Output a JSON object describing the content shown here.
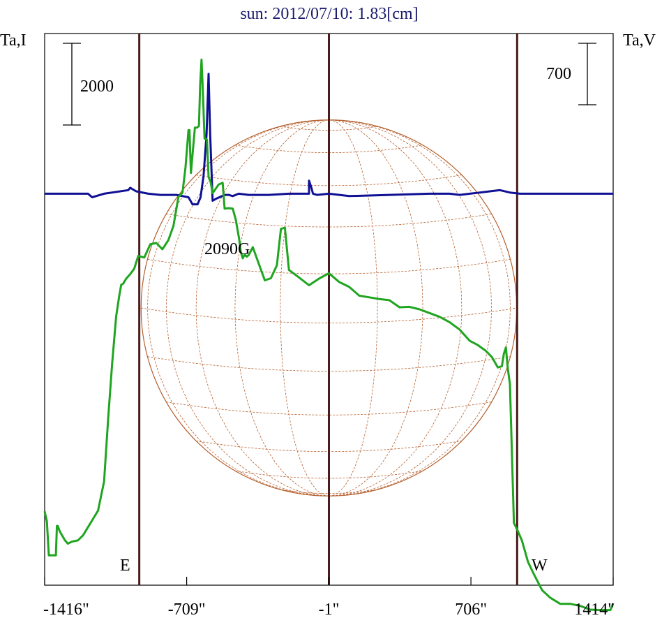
{
  "chart_data": {
    "type": "line",
    "title": "sun: 2012/07/10: 1.83[cm]",
    "y_left_label": "Ta,I",
    "y_right_label": "Ta,V",
    "scale_bar_left": "2000",
    "scale_bar_right": "700",
    "annotation": "2090G",
    "east_label": "E",
    "west_label": "W",
    "xlim": [
      -1416,
      1414
    ],
    "x_ticks": [
      {
        "value": -1416,
        "label": "-1416\""
      },
      {
        "value": -709,
        "label": "-709\""
      },
      {
        "value": -1,
        "label": "-1\""
      },
      {
        "value": 706,
        "label": "706\""
      },
      {
        "value": 1414,
        "label": "1414\""
      }
    ],
    "vertical_lines": [
      -945,
      -1,
      936
    ],
    "solar_disk": {
      "center_x": -1,
      "radius": 935
    },
    "colors": {
      "intensity": "#1fa51f",
      "polarization": "#101094",
      "disk": "#b5602e",
      "limb_lines": "#4a1c1c",
      "frame": "#000000",
      "title": "#1a1a6e"
    },
    "series": [
      {
        "key": "I",
        "ylim": [
          -2500,
          10800
        ],
        "x": [
          -1416,
          -1405,
          -1395,
          -1390,
          -1360,
          -1355,
          -1351,
          -1340,
          -1315,
          -1300,
          -1280,
          -1250,
          -1225,
          -1200,
          -1150,
          -1120,
          -1100,
          -1080,
          -1060,
          -1045,
          -1035,
          -1025,
          -1010,
          -990,
          -970,
          -950,
          -920,
          -890,
          -860,
          -830,
          -800,
          -775,
          -750,
          -730,
          -715,
          -700,
          -695,
          -688,
          -668,
          -658,
          -648,
          -642,
          -635,
          -628,
          -620,
          -608,
          -600,
          -590,
          -580,
          -550,
          -530,
          -520,
          -500,
          -480,
          -465,
          -448,
          -440,
          -430,
          -420,
          -410,
          -400,
          -380,
          -350,
          -320,
          -290,
          -260,
          -240,
          -220,
          -200,
          -150,
          -100,
          -50,
          -1,
          50,
          100,
          150,
          200,
          250,
          300,
          350,
          400,
          450,
          500,
          550,
          600,
          650,
          700,
          740,
          780,
          810,
          840,
          860,
          870,
          880,
          890,
          900,
          920,
          940,
          960,
          990,
          1020,
          1060,
          1100,
          1150,
          1200,
          1250,
          1300,
          1350,
          1400,
          1414
        ],
        "values": [
          -720,
          -960,
          -1780,
          -1780,
          -1780,
          -1070,
          -1070,
          -1210,
          -1420,
          -1500,
          -1450,
          -1420,
          -1300,
          -1100,
          -700,
          0,
          1500,
          2850,
          3980,
          4460,
          4740,
          4770,
          4890,
          5000,
          5130,
          5440,
          5400,
          5720,
          5750,
          5600,
          5820,
          6160,
          6860,
          6960,
          7570,
          8470,
          8470,
          7440,
          8530,
          8530,
          8570,
          9550,
          10170,
          9360,
          8270,
          8240,
          7340,
          7220,
          6950,
          7160,
          7200,
          6580,
          6590,
          6580,
          6320,
          5850,
          5540,
          5380,
          5470,
          5420,
          5460,
          5650,
          5250,
          4850,
          4900,
          5210,
          6090,
          6120,
          5100,
          4920,
          4730,
          4890,
          5020,
          4810,
          4690,
          4480,
          4440,
          4400,
          4370,
          4200,
          4210,
          4150,
          4060,
          3970,
          3840,
          3660,
          3390,
          3290,
          3150,
          3000,
          2750,
          2780,
          3080,
          3230,
          2700,
          2350,
          -1000,
          -1200,
          -1430,
          -1940,
          -2240,
          -2620,
          -2800,
          -2950,
          -2950,
          -3000,
          -3090,
          -3100,
          -3100,
          -2940
        ],
        "sensitive_note": ""
      },
      {
        "key": "V",
        "ylim": [
          -3300,
          1350
        ],
        "x": [
          -1416,
          -1200,
          -1180,
          -1120,
          -1000,
          -990,
          -960,
          -900,
          -840,
          -760,
          -700,
          -680,
          -655,
          -640,
          -625,
          -610,
          -600,
          -592,
          -580,
          -560,
          -520,
          -500,
          -480,
          -450,
          -400,
          -300,
          -200,
          -100,
          -100,
          -90,
          -80,
          -60,
          -1,
          100,
          300,
          500,
          600,
          650,
          700,
          750,
          800,
          850,
          900,
          950,
          1000,
          1414
        ],
        "values": [
          0,
          0,
          -30,
          0,
          30,
          50,
          20,
          0,
          -10,
          -10,
          -30,
          -90,
          -90,
          -30,
          150,
          500,
          1010,
          500,
          -60,
          -40,
          -10,
          -10,
          -20,
          0,
          -10,
          -10,
          0,
          0,
          110,
          60,
          0,
          -10,
          0,
          -20,
          -10,
          0,
          0,
          -10,
          0,
          10,
          20,
          30,
          10,
          0,
          0,
          0
        ]
      }
    ]
  }
}
